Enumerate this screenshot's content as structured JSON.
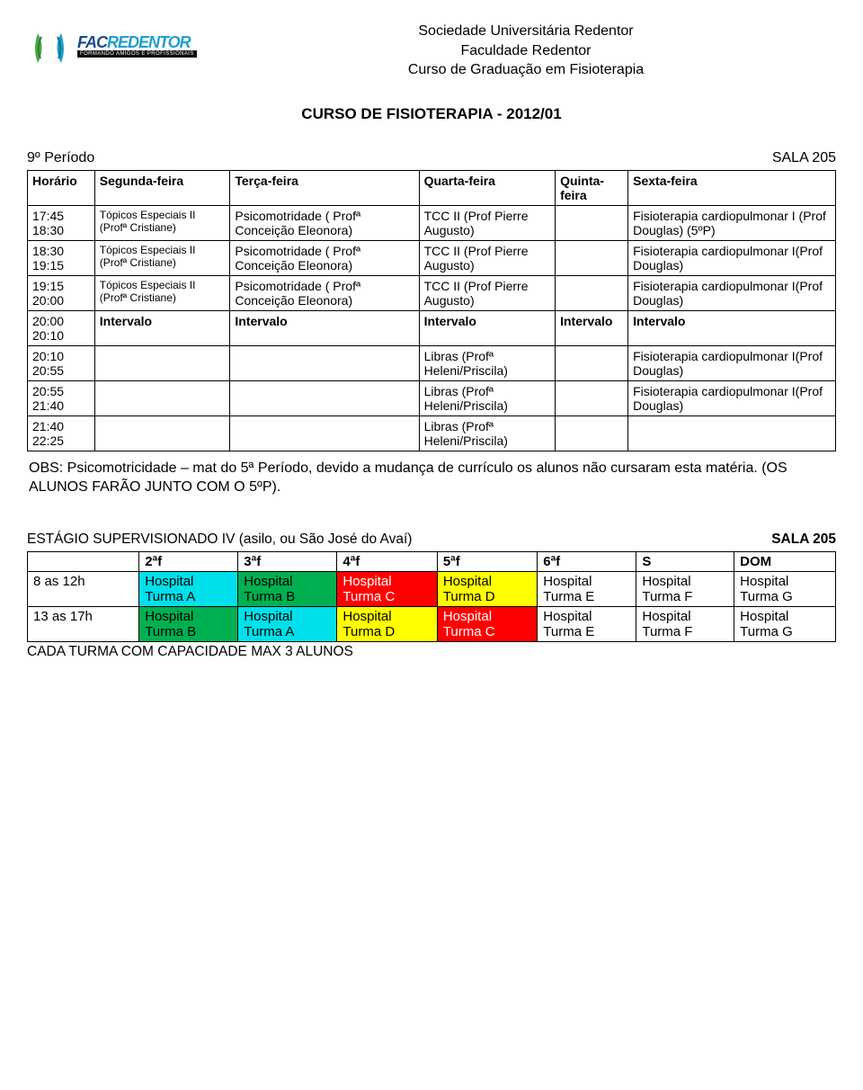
{
  "institutional": {
    "line1": "Sociedade Universitária Redentor",
    "line2": "Faculdade Redentor",
    "line3": "Curso de Graduação em Fisioterapia"
  },
  "logo": {
    "fac": "FAC",
    "redentor": "REDENTOR",
    "tagline": "FORMANDO AMIGOS E PROFISSIONAIS",
    "laurel_color_a": "#4aa84a",
    "laurel_color_b": "#1fa0cc",
    "fac_color": "#1a4a8a",
    "red_color": "#1fa0cc"
  },
  "course_title": "CURSO DE FISIOTERAPIA  -  2012/01",
  "period": "9º Período",
  "sala": "SALA 205",
  "schedule": {
    "headers": [
      "Horário",
      "Segunda-feira",
      "Terça-feira",
      "Quarta-feira",
      "Quinta-feira",
      "Sexta-feira"
    ],
    "rows": [
      {
        "time": "17:45 18:30",
        "seg": "Tópicos Especiais II (Profª Cristiane)",
        "seg_fontsize": "12px",
        "ter": "Psicomotridade ( Profª Conceição Eleonora)",
        "qua": "TCC II (Prof Pierre Augusto)",
        "qui": "",
        "sex": "Fisioterapia cardiopulmonar I (Prof Douglas) (5ºP)"
      },
      {
        "time": "18:30 19:15",
        "seg": "Tópicos Especiais II (Profª Cristiane)",
        "seg_fontsize": "12px",
        "ter": "Psicomotridade ( Profª Conceição Eleonora)",
        "qua": "TCC II (Prof Pierre Augusto)",
        "qui": "",
        "sex": "Fisioterapia cardiopulmonar I(Prof Douglas)"
      },
      {
        "time": "19:15 20:00",
        "seg": "Tópicos Especiais II (Profª Cristiane)",
        "seg_fontsize": "12px",
        "ter": "Psicomotridade ( Profª Conceição Eleonora)",
        "qua": "TCC II (Prof Pierre Augusto)",
        "qui": "",
        "sex": "Fisioterapia cardiopulmonar I(Prof Douglas)"
      },
      {
        "time": "20:00 20:10",
        "seg": "Intervalo",
        "seg_bold": true,
        "ter": "Intervalo",
        "ter_bold": true,
        "qua": "Intervalo",
        "qua_bold": true,
        "qui": "Intervalo",
        "qui_bold": true,
        "sex": "Intervalo",
        "sex_bold": true
      },
      {
        "time": "20:10 20:55",
        "seg": "",
        "ter": "",
        "qua": "Libras (Profª Heleni/Priscila)",
        "qui": "",
        "sex": "Fisioterapia cardiopulmonar I(Prof Douglas)"
      },
      {
        "time": "20:55 21:40",
        "seg": "",
        "ter": "",
        "qua": "Libras (Profª Heleni/Priscila)",
        "qui": "",
        "sex": "Fisioterapia cardiopulmonar I(Prof Douglas)"
      },
      {
        "time": "21:40 22:25",
        "seg": "",
        "ter": "",
        "qua": "Libras (Profª Heleni/Priscila)",
        "qui": "",
        "sex": ""
      }
    ]
  },
  "obs": "OBS: Psicomotricidade – mat do 5ª Período, devido a mudança de currículo os alunos não cursaram esta matéria. (OS ALUNOS FARÃO JUNTO COM O 5ºP).",
  "estagio": {
    "title": "ESTÁGIO SUPERVISIONADO IV (asilo, ou São José do Avaí)",
    "sala": "SALA 205",
    "headers": [
      "",
      "2ªf",
      "3ªf",
      "4ªf",
      "5ªf",
      "6ªf",
      "S",
      "DOM"
    ],
    "colors": {
      "none": "#ffffff",
      "cyan": "#00e0ea",
      "green": "#00b050",
      "red": "#ff0000",
      "yellow": "#ffff00"
    },
    "rows": [
      {
        "time": "8 as 12h",
        "cells": [
          {
            "l1": "Hospital",
            "l2": "Turma A",
            "bg": "cyan"
          },
          {
            "l1": "Hospital",
            "l2": "Turma B",
            "bg": "green"
          },
          {
            "l1": "Hospital",
            "l2": "Turma C",
            "bg": "red",
            "fg": "#ffffff"
          },
          {
            "l1": "Hospital",
            "l2": "Turma D",
            "bg": "yellow"
          },
          {
            "l1": "Hospital",
            "l2": "Turma E",
            "bg": "none"
          },
          {
            "l1": "Hospital",
            "l2": "Turma F",
            "bg": "none"
          },
          {
            "l1": "Hospital",
            "l2": "Turma G",
            "bg": "none"
          }
        ]
      },
      {
        "time": "13 as 17h",
        "cells": [
          {
            "l1": "Hospital",
            "l2": "Turma B",
            "bg": "green"
          },
          {
            "l1": "Hospital",
            "l2": " Turma A",
            "bg": "cyan"
          },
          {
            "l1": "Hospital",
            "l2": "Turma D",
            "bg": "yellow"
          },
          {
            "l1": "Hospital",
            "l2": "Turma C",
            "bg": "red",
            "fg": "#ffffff"
          },
          {
            "l1": "Hospital",
            "l2": "Turma E",
            "bg": "none"
          },
          {
            "l1": "Hospital",
            "l2": "Turma F",
            "bg": "none"
          },
          {
            "l1": "Hospital",
            "l2": "Turma G",
            "bg": "none"
          }
        ]
      }
    ],
    "footer": "CADA TURMA COM CAPACIDADE MAX 3 ALUNOS"
  }
}
